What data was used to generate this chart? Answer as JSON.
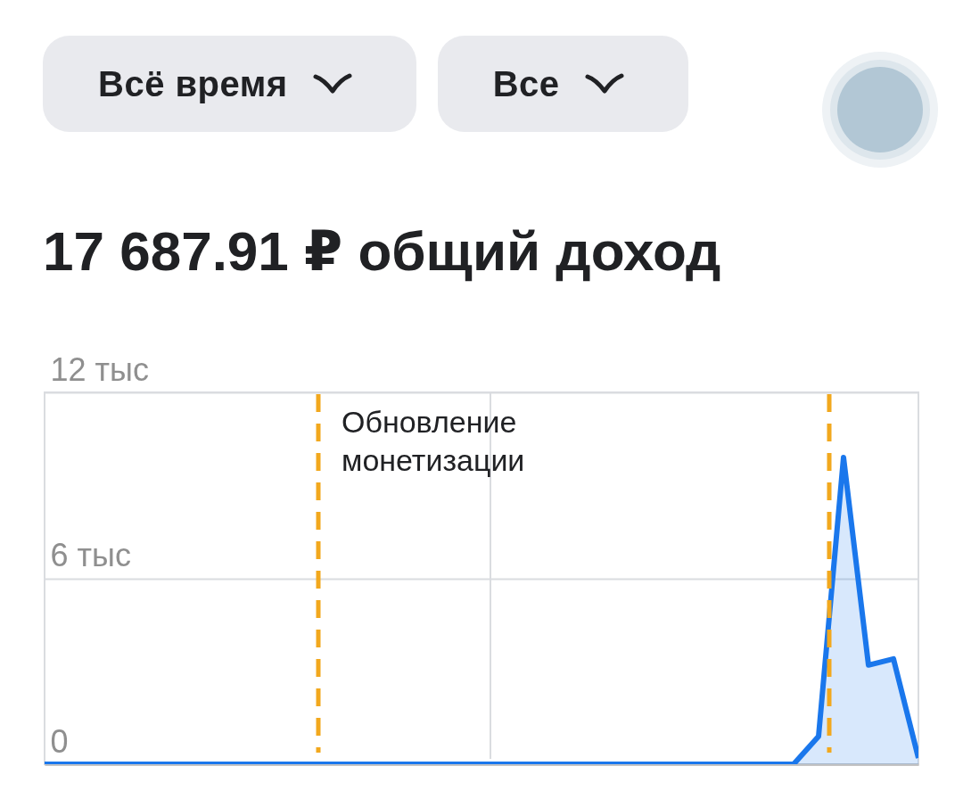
{
  "chart_data": {
    "type": "area",
    "title": "17 687.91 ₽ общий доход",
    "annotations": [
      "Всё время",
      "Все",
      "Обновление монетизации"
    ],
    "categories": [
      null,
      null,
      null,
      null,
      null,
      null,
      null,
      null,
      null,
      null,
      null,
      null,
      null,
      null,
      null,
      null,
      null,
      null,
      null,
      null,
      null,
      null,
      null,
      null,
      null,
      null,
      null,
      null,
      null,
      null,
      null,
      null,
      null,
      null,
      null,
      null
    ],
    "values": [
      0,
      0,
      0,
      0,
      0,
      0,
      0,
      0,
      0,
      0,
      0,
      0,
      0,
      0,
      0,
      0,
      0,
      0,
      0,
      0,
      0,
      0,
      0,
      0,
      0,
      0,
      0,
      0,
      0,
      0,
      0,
      0.9,
      9.9,
      3.2,
      3.4,
      0.2
    ],
    "color": "#1a77ec",
    "ylim": [
      0,
      12
    ],
    "yticks": [
      0,
      {
        "value": 6,
        "label": "6 тыс"
      },
      {
        "value": 12,
        "label": "12 тыс"
      }
    ],
    "grid": "y"
  }
}
